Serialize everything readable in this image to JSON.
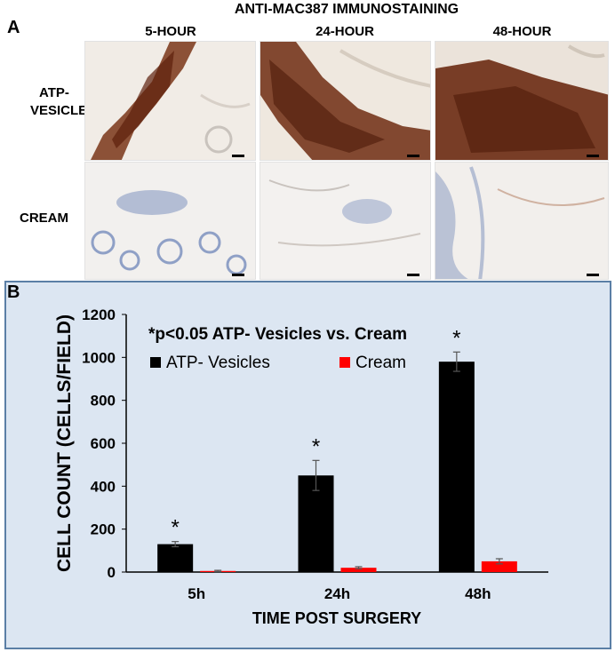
{
  "panel_a": {
    "letter": "A",
    "title": "ANTI-MAC387 IMMUNOSTAINING",
    "columns": [
      "5-HOUR",
      "24-HOUR",
      "48-HOUR"
    ],
    "rows": [
      {
        "label_line1": "ATP-",
        "label_line2": "VESICLES",
        "stain": "brown"
      },
      {
        "label_line1": "CREAM",
        "label_line2": "",
        "stain": "blue"
      }
    ],
    "colors": {
      "brown_stain": "#6b2a12",
      "blue_stain": "#7f93bf",
      "tissue_bg": "#f1ece6"
    }
  },
  "panel_b": {
    "letter": "B",
    "colors": {
      "background": "#dce6f2",
      "border": "#5b7fa6",
      "atp": "#000000",
      "cream": "#ff0000"
    }
  },
  "chart_data": {
    "type": "bar",
    "categories": [
      "5h",
      "24h",
      "48h"
    ],
    "series": [
      {
        "name": "ATP- Vesicles",
        "values": [
          130,
          450,
          980
        ],
        "errors": [
          12,
          70,
          45
        ],
        "color": "#000000"
      },
      {
        "name": "Cream",
        "values": [
          5,
          20,
          50
        ],
        "errors": [
          3,
          5,
          12
        ],
        "color": "#ff0000"
      }
    ],
    "significance_marker": "*",
    "significant_categories": [
      "5h",
      "24h",
      "48h"
    ],
    "annotation": "*p<0.05 ATP- Vesicles vs. Cream",
    "xlabel": "TIME POST SURGERY",
    "ylabel": "CELL COUNT (CELLS/FIELD)",
    "ylim": [
      0,
      1200
    ],
    "yticks": [
      0,
      200,
      400,
      600,
      800,
      1000,
      1200
    ],
    "grid": false,
    "legend_position": "top-left"
  }
}
